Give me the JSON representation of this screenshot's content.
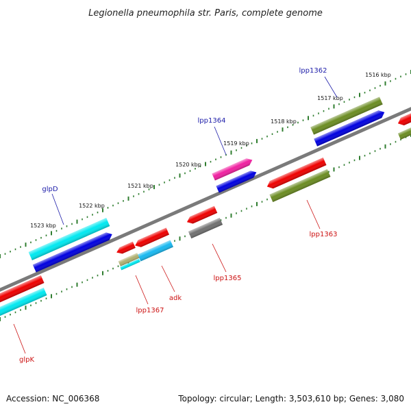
{
  "title": "Legionella pneumophila str. Paris, complete genome",
  "footer": {
    "accession": "Accession: NC_006368",
    "summary": "Topology: circular; Length: 3,503,610 bp; Genes: 3,080"
  },
  "colors": {
    "backbone": "#7a7a7a",
    "tick": "#2f7d2f",
    "forward_label": "#1a1aa8",
    "reverse_label": "#cc1111"
  },
  "scale_labels": [
    "1516 kbp",
    "1517 kbp",
    "1518 kbp",
    "1519 kbp",
    "1520 kbp",
    "1521 kbp",
    "1522 kbp",
    "1523 kbp"
  ],
  "gene_labels": {
    "lpp1362": "lpp1362",
    "lpp1364": "lpp1364",
    "glpD": "glpD",
    "lpp1363": "lpp1363",
    "lpp1365": "lpp1365",
    "adk": "adk",
    "lpp1367": "lpp1367",
    "glpK": "glpK"
  },
  "feature_colors": {
    "cyan": "#00e8f0",
    "blue": "#0000e0",
    "red": "#ee0000",
    "olive": "#6b8c22",
    "magenta": "#f020a0",
    "gray": "#707070",
    "skyblue": "#18b8f0",
    "khaki": "#b0b070"
  }
}
